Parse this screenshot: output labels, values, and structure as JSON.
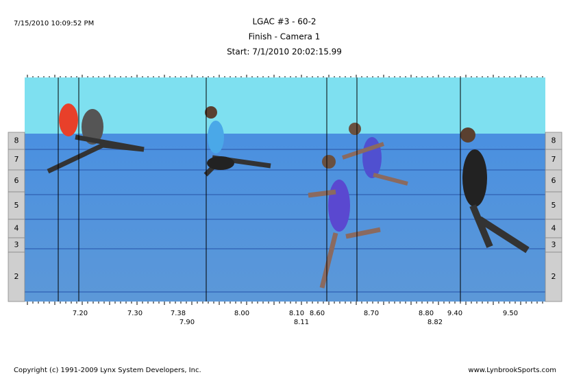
{
  "header": {
    "timestamp": "7/15/2010 10:09:52 PM",
    "title": "LGAC #3 - 60-2",
    "subtitle": "Finish - Camera 1",
    "start": "Start: 7/1/2010 20:02:15.99"
  },
  "lanes": [
    "8",
    "7",
    "6",
    "5",
    "4",
    "3",
    "2"
  ],
  "times_top": [
    "7.20",
    "7.30",
    "7.38",
    "8.00",
    "8.10",
    "8.60",
    "8.70",
    "8.80",
    "9.40",
    "9.50"
  ],
  "times_bottom": [
    "7.90",
    "8.11",
    "8.82"
  ],
  "footer": {
    "copyright": "Copyright (c) 1991-2009 Lynx System Developers, Inc.",
    "website": "www.LynbrookSports.com"
  }
}
